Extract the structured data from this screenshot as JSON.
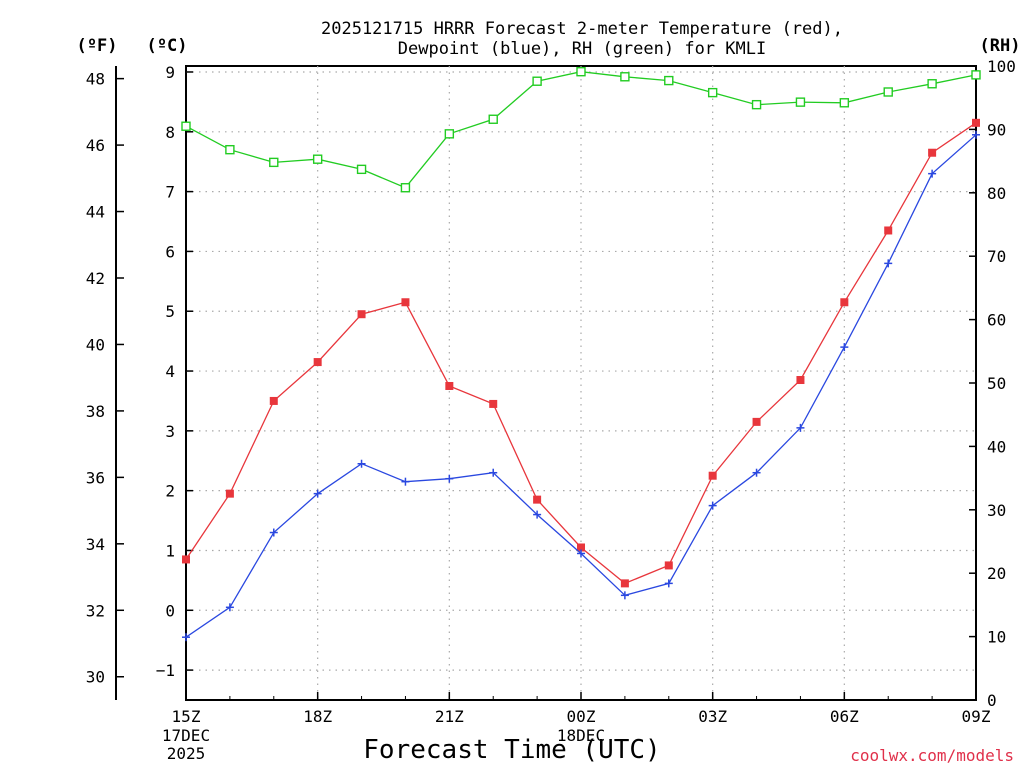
{
  "chart_data": {
    "type": "line",
    "title_line1": "2025121715 HRRR Forecast 2-meter Temperature (red),",
    "title_line2": "Dewpoint (blue), RH (green) for KMLI",
    "xlabel": "Forecast Time (UTC)",
    "credit": "coolwx.com/models",
    "axes": {
      "left_f": {
        "unit": "(ºF)",
        "ticks": [
          30,
          32,
          34,
          36,
          38,
          40,
          42,
          44,
          46,
          48
        ]
      },
      "left_c": {
        "unit": "(ºC)",
        "ticks": [
          -1,
          0,
          1,
          2,
          3,
          4,
          5,
          6,
          7,
          8,
          9
        ],
        "ylim": [
          -1.5,
          9.1
        ]
      },
      "right_rh": {
        "unit": "(RH)",
        "ticks": [
          0,
          10,
          20,
          30,
          40,
          50,
          60,
          70,
          80,
          90,
          100
        ],
        "ylim": [
          0,
          100
        ]
      }
    },
    "x_hours": [
      0,
      1,
      2,
      3,
      4,
      5,
      6,
      7,
      8,
      9,
      10,
      11,
      12,
      13,
      14,
      15,
      16,
      17,
      18
    ],
    "x_ticks": [
      {
        "hour": 0,
        "label": "15Z",
        "sub1": "17DEC",
        "sub2": "2025"
      },
      {
        "hour": 3,
        "label": "18Z",
        "sub1": "",
        "sub2": ""
      },
      {
        "hour": 6,
        "label": "21Z",
        "sub1": "",
        "sub2": ""
      },
      {
        "hour": 9,
        "label": "00Z",
        "sub1": "18DEC",
        "sub2": ""
      },
      {
        "hour": 12,
        "label": "03Z",
        "sub1": "",
        "sub2": ""
      },
      {
        "hour": 15,
        "label": "06Z",
        "sub1": "",
        "sub2": ""
      },
      {
        "hour": 18,
        "label": "09Z",
        "sub1": "",
        "sub2": ""
      }
    ],
    "series": [
      {
        "name": "Temperature",
        "axis": "celsius",
        "color": "#e8363c",
        "marker": "filled-square",
        "values": [
          0.85,
          1.95,
          3.5,
          4.15,
          4.95,
          5.15,
          3.75,
          3.45,
          1.85,
          1.05,
          0.45,
          0.75,
          2.25,
          3.15,
          3.85,
          5.15,
          6.35,
          7.65,
          8.15
        ]
      },
      {
        "name": "Dewpoint",
        "axis": "celsius",
        "color": "#2a48e0",
        "marker": "plus",
        "values": [
          -0.45,
          0.05,
          1.3,
          1.95,
          2.45,
          2.15,
          2.2,
          2.3,
          1.6,
          0.95,
          0.25,
          0.45,
          1.75,
          2.3,
          3.05,
          4.4,
          5.8,
          7.3,
          7.95
        ]
      },
      {
        "name": "RH",
        "axis": "rh",
        "color": "#22cc22",
        "marker": "open-square",
        "values": [
          90.5,
          86.8,
          84.8,
          85.3,
          83.7,
          80.8,
          89.3,
          91.6,
          97.6,
          99.1,
          98.3,
          97.7,
          95.8,
          93.9,
          94.3,
          94.2,
          95.9,
          97.2,
          98.6
        ]
      }
    ]
  }
}
